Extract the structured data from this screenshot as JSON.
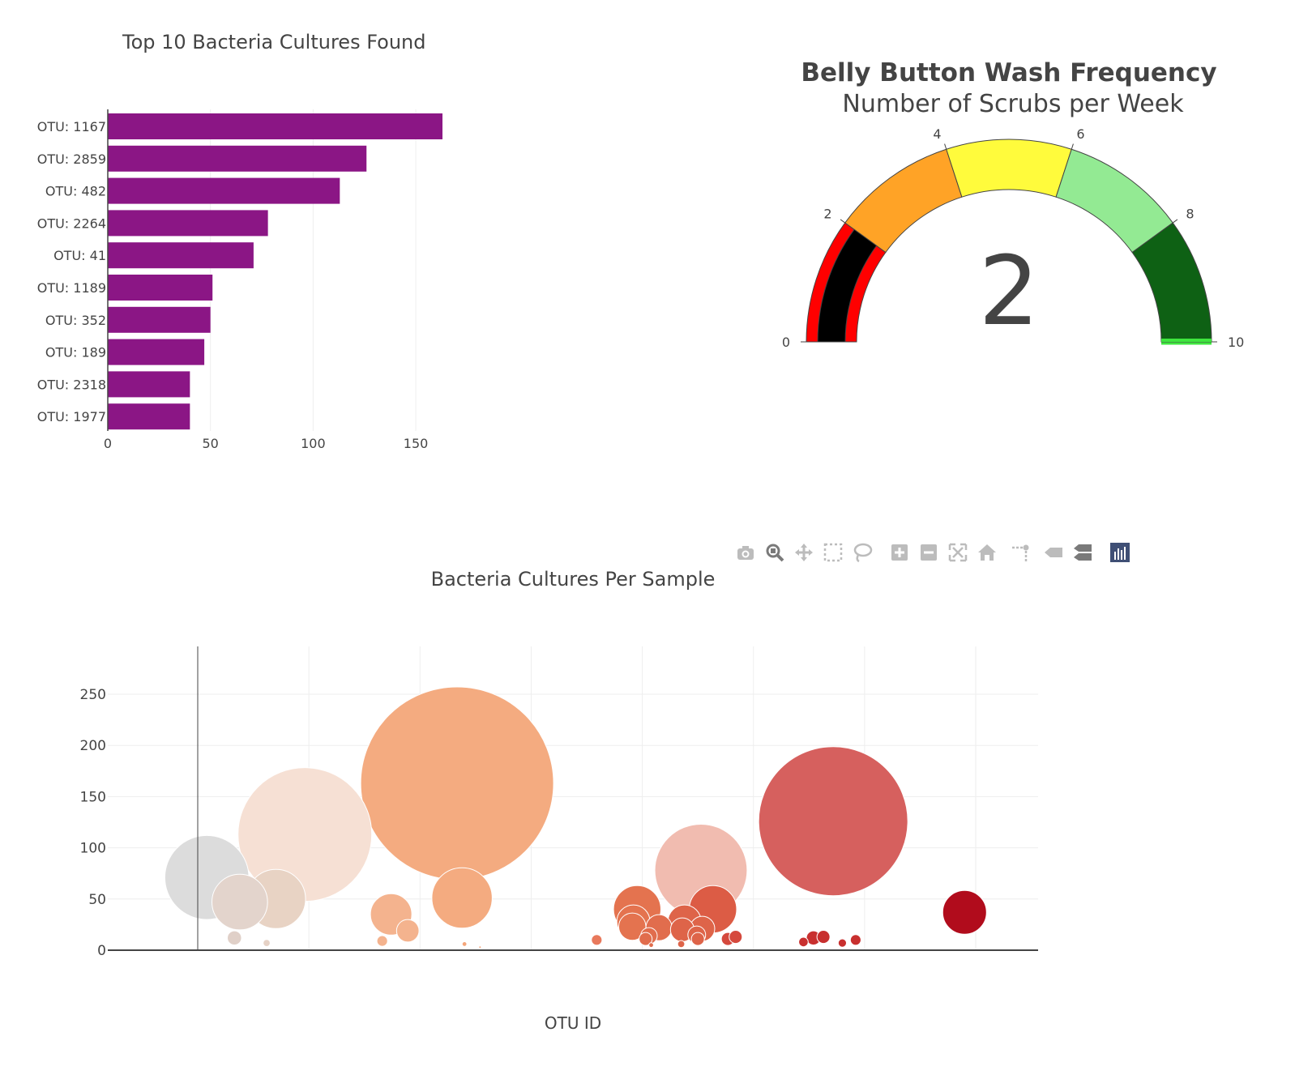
{
  "bar_panel": {
    "title": "Top 10 Bacteria Cultures Found",
    "bar_color": "#8B1685"
  },
  "gauge_panel": {
    "title": "Belly Button Wash Frequency",
    "subtitle": "Number of Scrubs per Week",
    "value_display": "2",
    "colors": {
      "band_0_2_outer": "#ff0000",
      "band_0_2_inner": "#000000",
      "band_2_4": "#ffa326",
      "band_4_6": "#fffb3c",
      "band_6_8": "#93ea93",
      "band_8_10": "#0e6114",
      "threshold_line": "#3ee63e"
    }
  },
  "bubble_panel": {
    "title": "Bacteria Cultures Per Sample",
    "x_axis_label": "OTU ID"
  },
  "modebar": {
    "buttons": [
      {
        "name": "camera-icon"
      },
      {
        "name": "zoom-icon"
      },
      {
        "name": "pan-icon"
      },
      {
        "name": "box-select-icon"
      },
      {
        "name": "lasso-select-icon"
      },
      {
        "name": "zoom-in-icon"
      },
      {
        "name": "zoom-out-icon"
      },
      {
        "name": "autoscale-icon"
      },
      {
        "name": "reset-axes-icon"
      },
      {
        "name": "spike-lines-icon"
      },
      {
        "name": "hover-closest-icon"
      },
      {
        "name": "hover-compare-icon"
      },
      {
        "name": "plotly-logo-icon"
      }
    ]
  },
  "chart_data": [
    {
      "type": "bar",
      "orientation": "horizontal",
      "title": "Top 10 Bacteria Cultures Found",
      "categories": [
        "OTU: 1167",
        "OTU: 2859",
        "OTU: 482",
        "OTU: 2264",
        "OTU: 41",
        "OTU: 1189",
        "OTU: 352",
        "OTU: 189",
        "OTU: 2318",
        "OTU: 1977"
      ],
      "values": [
        163,
        126,
        113,
        78,
        71,
        51,
        50,
        47,
        40,
        40
      ],
      "xlim": [
        0,
        163
      ],
      "x_ticks": [
        0,
        50,
        100,
        150
      ],
      "grid": true
    },
    {
      "type": "gauge",
      "title": "Belly Button Wash Frequency",
      "subtitle": "Number of Scrubs per Week",
      "value": 2,
      "range": [
        0,
        10
      ],
      "ticks": [
        0,
        2,
        4,
        6,
        8,
        10
      ],
      "threshold": 10
    },
    {
      "type": "scatter",
      "mode": "bubble",
      "title": "Bacteria Cultures Per Sample",
      "xlabel": "OTU ID",
      "ylabel": "",
      "xlim": [
        -400,
        3800
      ],
      "ylim": [
        -5,
        295
      ],
      "x_ticks": [
        0,
        500,
        1000,
        1500,
        2000,
        2500,
        3000,
        3500
      ],
      "y_ticks": [
        0,
        50,
        100,
        150,
        200,
        250
      ],
      "grid": true,
      "points": [
        {
          "x": 41,
          "y": 71,
          "size": 71,
          "color": "#dcdcdc"
        },
        {
          "x": 482,
          "y": 113,
          "size": 113,
          "color": "#f6e0d4"
        },
        {
          "x": 189,
          "y": 47,
          "size": 47,
          "color": "#e3d4cc"
        },
        {
          "x": 352,
          "y": 50,
          "size": 50,
          "color": "#e8d3c4"
        },
        {
          "x": 165,
          "y": 12,
          "size": 12,
          "color": "#e0d0c8"
        },
        {
          "x": 310,
          "y": 7,
          "size": 6,
          "color": "#e6d2c6"
        },
        {
          "x": 1167,
          "y": 163,
          "size": 163,
          "color": "#f4ab80"
        },
        {
          "x": 1189,
          "y": 51,
          "size": 51,
          "color": "#f4ab80"
        },
        {
          "x": 870,
          "y": 35,
          "size": 35,
          "color": "#f4b38e"
        },
        {
          "x": 945,
          "y": 19,
          "size": 19,
          "color": "#f4b38e"
        },
        {
          "x": 830,
          "y": 9,
          "size": 9,
          "color": "#f4b38e"
        },
        {
          "x": 1200,
          "y": 6,
          "size": 4,
          "color": "#f4a67a"
        },
        {
          "x": 1270,
          "y": 3,
          "size": 2,
          "color": "#f4a67a"
        },
        {
          "x": 1795,
          "y": 10,
          "size": 9,
          "color": "#e8795c"
        },
        {
          "x": 1977,
          "y": 40,
          "size": 40,
          "color": "#e4734f"
        },
        {
          "x": 1960,
          "y": 28,
          "size": 28,
          "color": "#e4734f"
        },
        {
          "x": 1955,
          "y": 23,
          "size": 23,
          "color": "#e4734f"
        },
        {
          "x": 2030,
          "y": 14,
          "size": 14,
          "color": "#e16d4d"
        },
        {
          "x": 2075,
          "y": 22,
          "size": 22,
          "color": "#e16d4d"
        },
        {
          "x": 2015,
          "y": 11,
          "size": 11,
          "color": "#e16d4d"
        },
        {
          "x": 2040,
          "y": 5,
          "size": 4,
          "color": "#e16d4d"
        },
        {
          "x": 2264,
          "y": 78,
          "size": 78,
          "color": "#f1bcb0"
        },
        {
          "x": 2318,
          "y": 40,
          "size": 40,
          "color": "#dc5c45"
        },
        {
          "x": 2190,
          "y": 28,
          "size": 28,
          "color": "#de6449"
        },
        {
          "x": 2180,
          "y": 20,
          "size": 20,
          "color": "#de6449"
        },
        {
          "x": 2270,
          "y": 21,
          "size": 21,
          "color": "#de6449"
        },
        {
          "x": 2245,
          "y": 15,
          "size": 15,
          "color": "#de6449"
        },
        {
          "x": 2250,
          "y": 11,
          "size": 11,
          "color": "#de6449"
        },
        {
          "x": 2175,
          "y": 6,
          "size": 6,
          "color": "#de6449"
        },
        {
          "x": 2385,
          "y": 11,
          "size": 11,
          "color": "#d5493d"
        },
        {
          "x": 2420,
          "y": 13,
          "size": 11,
          "color": "#d5493d"
        },
        {
          "x": 2859,
          "y": 126,
          "size": 126,
          "color": "#d6605e"
        },
        {
          "x": 2725,
          "y": 8,
          "size": 8,
          "color": "#c8302f"
        },
        {
          "x": 2770,
          "y": 12,
          "size": 12,
          "color": "#c8302f"
        },
        {
          "x": 2815,
          "y": 13,
          "size": 11,
          "color": "#c8302f"
        },
        {
          "x": 2900,
          "y": 7,
          "size": 7,
          "color": "#c8302f"
        },
        {
          "x": 2960,
          "y": 10,
          "size": 9,
          "color": "#c8302f"
        },
        {
          "x": 3450,
          "y": 37,
          "size": 37,
          "color": "#b10c1c"
        }
      ]
    }
  ]
}
